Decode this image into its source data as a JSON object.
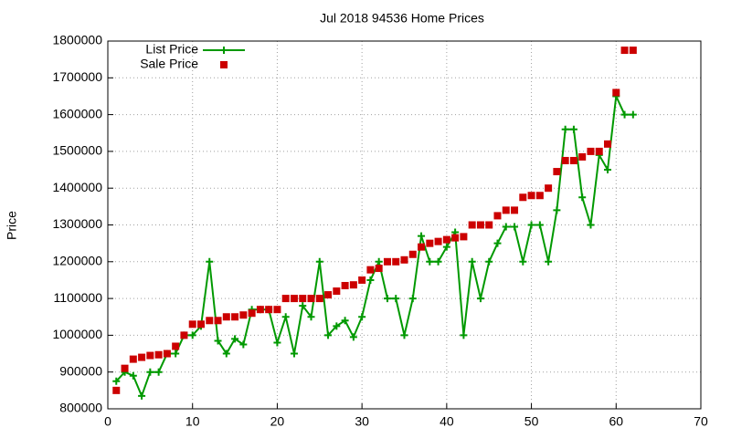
{
  "chart_data": {
    "type": "line",
    "title": "Jul 2018 94536 Home Prices",
    "y_label": "Price",
    "x": [
      1,
      2,
      3,
      4,
      5,
      6,
      7,
      8,
      9,
      10,
      11,
      12,
      13,
      14,
      15,
      16,
      17,
      18,
      19,
      20,
      21,
      22,
      23,
      24,
      25,
      26,
      27,
      28,
      29,
      30,
      31,
      32,
      33,
      34,
      35,
      36,
      37,
      38,
      39,
      40,
      41,
      42,
      43,
      44,
      45,
      46,
      47,
      48,
      49,
      50,
      51,
      52,
      53,
      54,
      55,
      56,
      57,
      58,
      59,
      60,
      61,
      62
    ],
    "series": [
      {
        "name": "List Price",
        "color": "#009900",
        "style": "linespoints",
        "marker": "plus",
        "values": [
          875000,
          900000,
          890000,
          835000,
          900000,
          900000,
          950000,
          950000,
          1000000,
          1000000,
          1025000,
          1200000,
          985000,
          950000,
          990000,
          975000,
          1070000,
          1070000,
          1070000,
          980000,
          1050000,
          950000,
          1080000,
          1050000,
          1200000,
          1000000,
          1025000,
          1040000,
          995000,
          1050000,
          1150000,
          1200000,
          1100000,
          1100000,
          1000000,
          1100000,
          1270000,
          1200000,
          1200000,
          1240000,
          1280000,
          1000000,
          1200000,
          1100000,
          1200000,
          1250000,
          1295000,
          1295000,
          1200000,
          1300000,
          1300000,
          1200000,
          1340000,
          1560000,
          1560000,
          1375000,
          1300000,
          1490000,
          1450000,
          1650000,
          1600000,
          1600000
        ]
      },
      {
        "name": "Sale Price",
        "color": "#cc0000",
        "style": "points",
        "marker": "square",
        "values": [
          850000,
          910000,
          935000,
          940000,
          945000,
          947000,
          950000,
          970000,
          1000000,
          1030000,
          1030000,
          1040000,
          1040000,
          1050000,
          1050000,
          1055000,
          1060000,
          1070000,
          1070000,
          1070000,
          1100000,
          1100000,
          1100000,
          1100000,
          1100000,
          1110000,
          1120000,
          1135000,
          1137000,
          1150000,
          1178000,
          1182000,
          1200000,
          1200000,
          1205000,
          1220000,
          1240000,
          1250000,
          1255000,
          1260000,
          1265000,
          1268000,
          1300000,
          1300000,
          1300000,
          1325000,
          1340000,
          1340000,
          1375000,
          1380000,
          1380000,
          1400000,
          1445000,
          1475000,
          1475000,
          1485000,
          1500000,
          1500000,
          1520000,
          1660000,
          1775000,
          1775000
        ]
      }
    ],
    "xlim": [
      0,
      70
    ],
    "xticks": [
      0,
      10,
      20,
      30,
      40,
      50,
      60,
      70
    ],
    "ylim": [
      800000,
      1800000
    ],
    "yticks": [
      800000,
      900000,
      1000000,
      1100000,
      1200000,
      1300000,
      1400000,
      1500000,
      1600000,
      1700000,
      1800000
    ],
    "grid": true,
    "legend": "top-left"
  }
}
